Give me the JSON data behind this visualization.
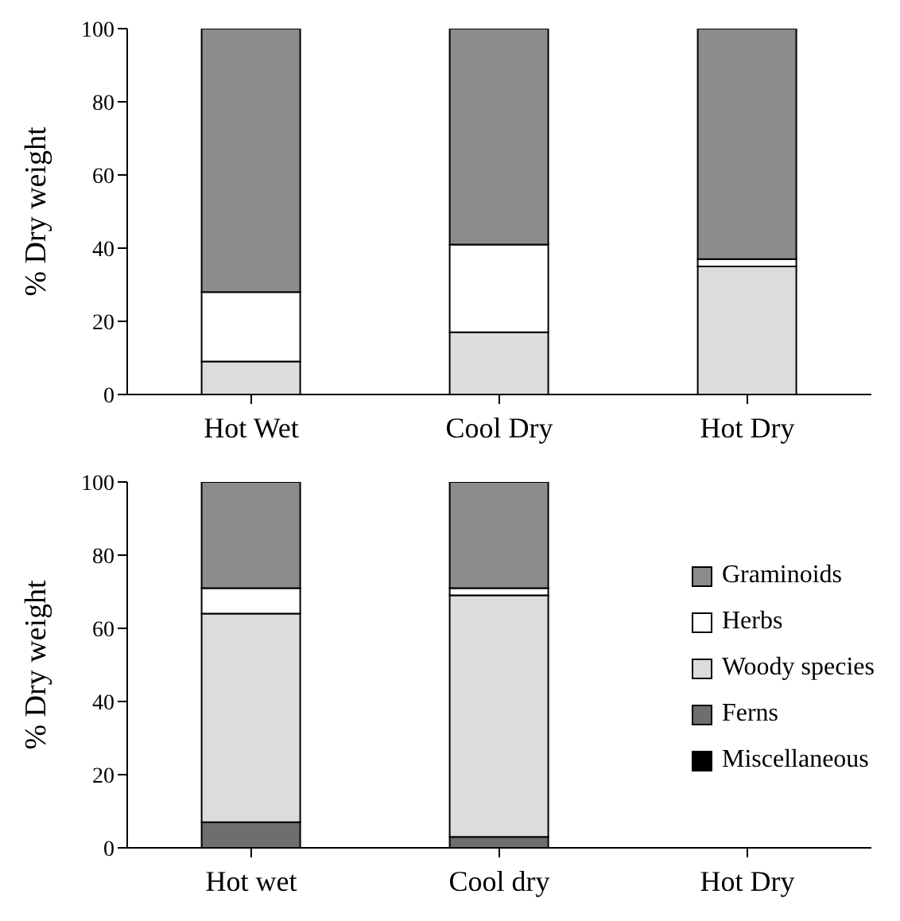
{
  "chart_data": [
    {
      "type": "bar",
      "stacked": true,
      "ylabel": "% Dry weight",
      "categories": [
        "Hot Wet",
        "Cool Dry",
        "Hot Dry"
      ],
      "ylim": [
        0,
        100
      ],
      "yticks": [
        0,
        20,
        40,
        60,
        80,
        100
      ],
      "grid": false,
      "legend": false,
      "series": [
        {
          "color": "#dcdcdc",
          "values": [
            9,
            17,
            35
          ]
        },
        {
          "color": "#ffffff",
          "values": [
            19,
            24,
            2
          ]
        },
        {
          "color": "#8c8c8c",
          "values": [
            72,
            59,
            63
          ]
        }
      ]
    },
    {
      "type": "bar",
      "stacked": true,
      "ylabel": "% Dry weight",
      "categories": [
        "Hot wet",
        "Cool dry",
        "Hot Dry"
      ],
      "ylim": [
        0,
        100
      ],
      "yticks": [
        0,
        20,
        40,
        60,
        80,
        100
      ],
      "grid": false,
      "legend": "right",
      "series": [
        {
          "name": "Miscellaneous",
          "color": "#000000",
          "values": [
            0,
            0,
            null
          ]
        },
        {
          "name": "Ferns",
          "color": "#6e6e6e",
          "values": [
            7,
            3,
            null
          ]
        },
        {
          "name": "Woody species",
          "color": "#dcdcdc",
          "values": [
            57,
            66,
            null
          ]
        },
        {
          "name": "Herbs",
          "color": "#ffffff",
          "values": [
            7,
            2,
            null
          ]
        },
        {
          "name": "Graminoids",
          "color": "#8c8c8c",
          "values": [
            29,
            29,
            null
          ]
        }
      ]
    }
  ]
}
